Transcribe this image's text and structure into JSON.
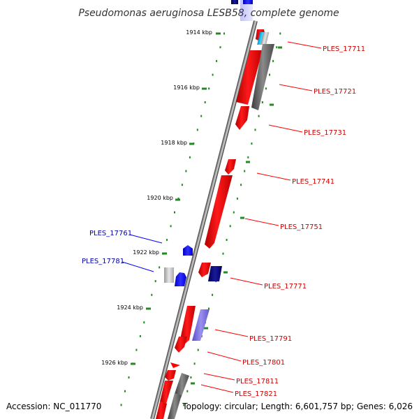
{
  "title": "Pseudomonas aeruginosa LESB58, complete genome",
  "ruler_labels": [
    "1914 kbp",
    "1916 kbp",
    "1918 kbp",
    "1920 kbp",
    "1922 kbp",
    "1924 kbp",
    "1926 kbp"
  ],
  "genes_forward": [
    "PLES_17711",
    "PLES_17721",
    "PLES_17731",
    "PLES_17741",
    "PLES_17751",
    "PLES_17771",
    "PLES_17791",
    "PLES_17801",
    "PLES_17811",
    "PLES_17821"
  ],
  "genes_reverse": [
    "PLES_17761",
    "PLES_17781"
  ],
  "footer": {
    "accession": "Accession: NC_011770",
    "stats": "Topology: circular; Length: 6,601,757 bp; Genes: 6,026"
  },
  "colors": {
    "cds": "#ff0000",
    "reverse_cds": "#0000ff",
    "dark_blue": "#000080",
    "rna": "#606060",
    "light_blue": "#7b68ee",
    "cyan": "#00bfff",
    "backbone": "#808080",
    "tick_green": "#228b22",
    "label_red": "#cc0000",
    "label_blue": "#0000aa"
  }
}
